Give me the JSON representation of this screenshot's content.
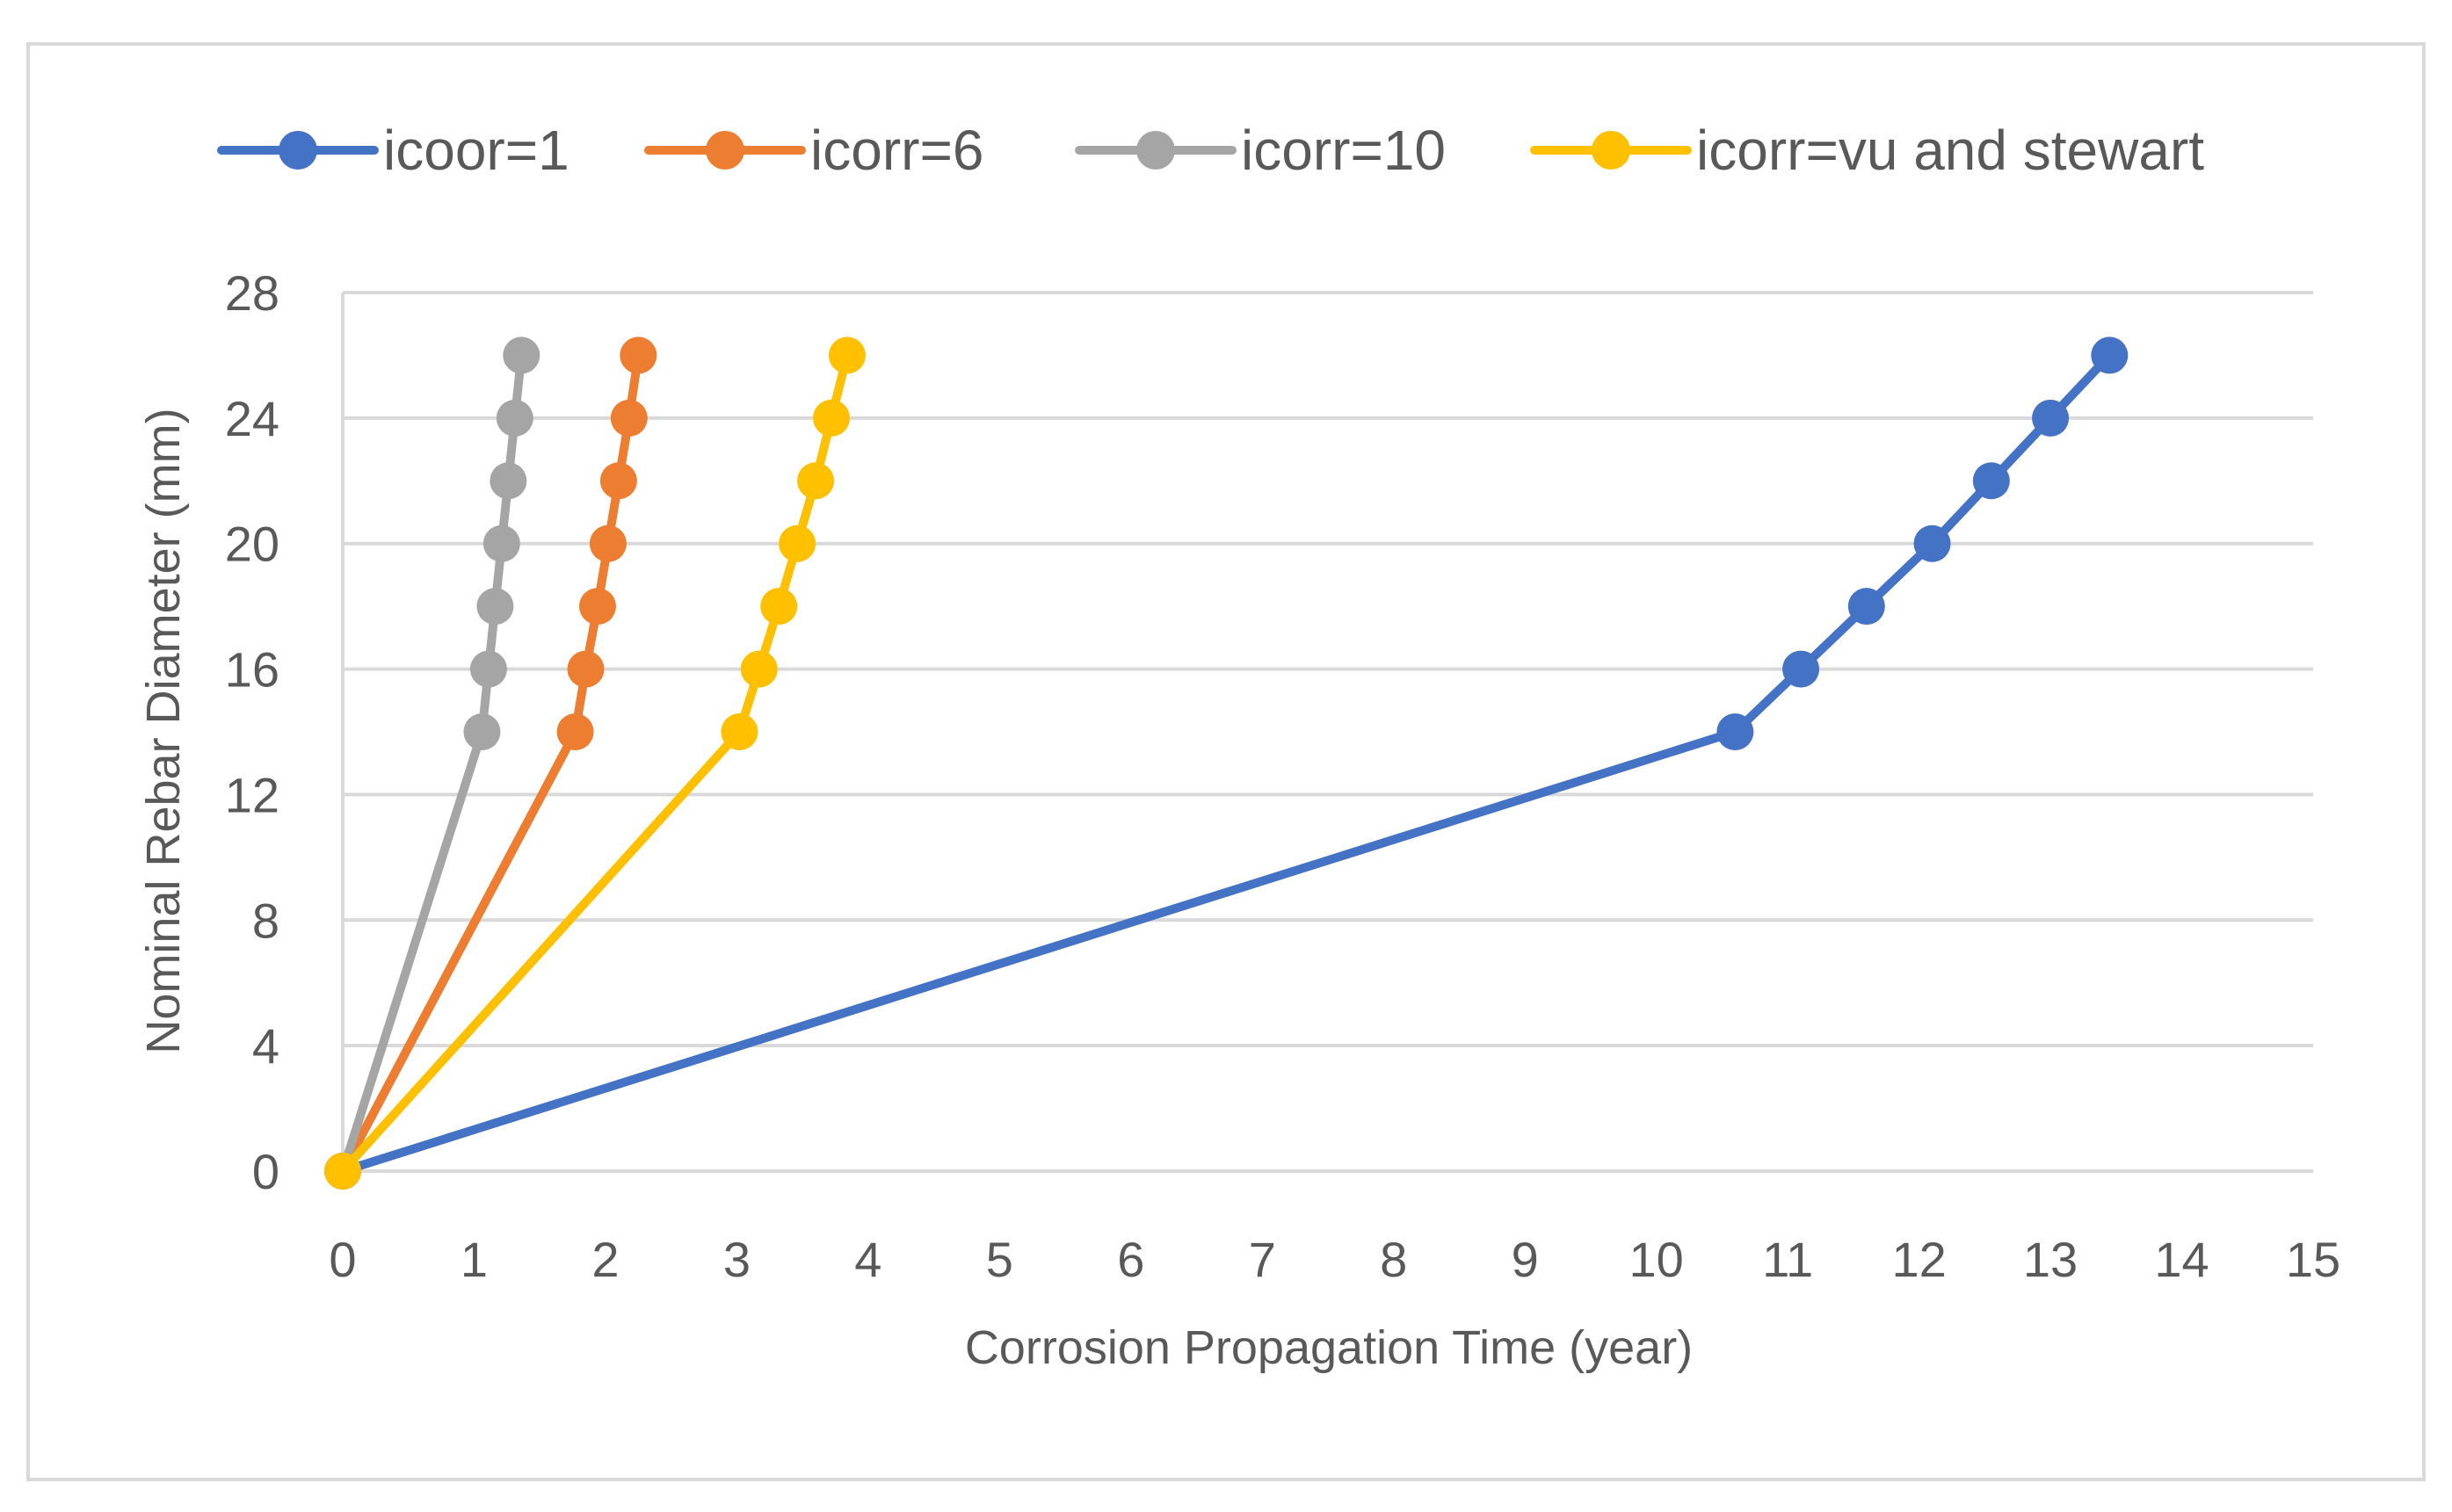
{
  "chart_data": {
    "type": "line",
    "title": "",
    "xlabel": "Corrosion Propagation Time (year)",
    "ylabel": "Nominal Rebar Diameter (mm)",
    "xlim": [
      0,
      15
    ],
    "ylim": [
      0,
      28
    ],
    "xticks": [
      0,
      1,
      2,
      3,
      4,
      5,
      6,
      7,
      8,
      9,
      10,
      11,
      12,
      13,
      14,
      15
    ],
    "yticks": [
      0,
      4,
      8,
      12,
      16,
      20,
      24,
      28
    ],
    "grid": true,
    "legend_position": "top",
    "series": [
      {
        "name": "icoor=1",
        "color": "#4472C4",
        "points": [
          [
            0,
            0
          ],
          [
            10.6,
            14
          ],
          [
            11.1,
            16
          ],
          [
            11.6,
            18
          ],
          [
            12.1,
            20
          ],
          [
            12.55,
            22
          ],
          [
            13.0,
            24
          ],
          [
            13.45,
            26
          ]
        ]
      },
      {
        "name": "icorr=6",
        "color": "#ED7D31",
        "points": [
          [
            0,
            0
          ],
          [
            1.77,
            14
          ],
          [
            1.85,
            16
          ],
          [
            1.94,
            18
          ],
          [
            2.02,
            20
          ],
          [
            2.1,
            22
          ],
          [
            2.18,
            24
          ],
          [
            2.25,
            26
          ]
        ]
      },
      {
        "name": "icorr=10",
        "color": "#A5A5A5",
        "points": [
          [
            0,
            0
          ],
          [
            1.06,
            14
          ],
          [
            1.11,
            16
          ],
          [
            1.16,
            18
          ],
          [
            1.21,
            20
          ],
          [
            1.26,
            22
          ],
          [
            1.31,
            24
          ],
          [
            1.36,
            26
          ]
        ]
      },
      {
        "name": "icorr=vu and stewart",
        "color": "#FFC000",
        "points": [
          [
            0,
            0
          ],
          [
            3.02,
            14
          ],
          [
            3.17,
            16
          ],
          [
            3.32,
            18
          ],
          [
            3.46,
            20
          ],
          [
            3.6,
            22
          ],
          [
            3.72,
            24
          ],
          [
            3.84,
            26
          ]
        ]
      }
    ]
  }
}
